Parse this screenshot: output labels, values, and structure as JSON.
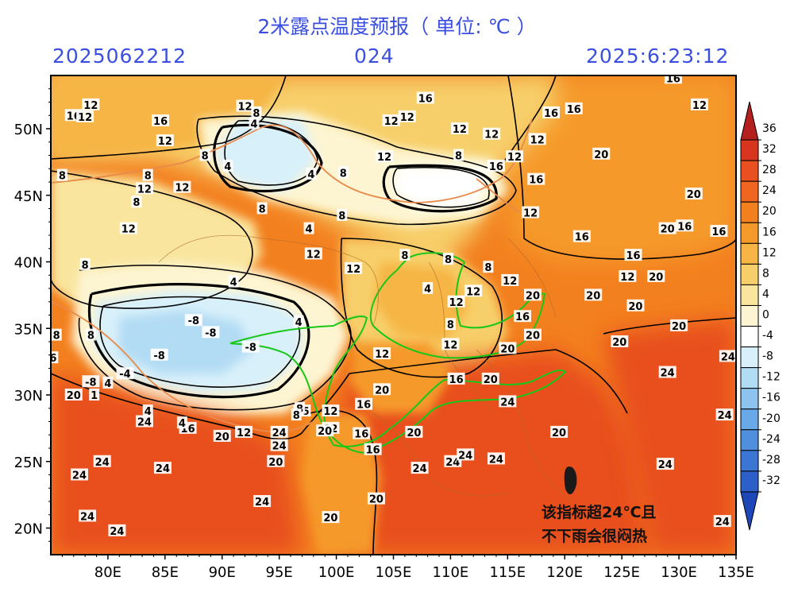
{
  "header": {
    "title": "2米露点温度预报（ 单位: ℃ ）",
    "init_time": "2025062212",
    "lead_hours": "024",
    "valid_time": "2025:6:23:12"
  },
  "axes": {
    "lat_labels": [
      "50N",
      "45N",
      "40N",
      "35N",
      "30N",
      "25N",
      "20N"
    ],
    "lon_labels": [
      "80E",
      "85E",
      "90E",
      "95E",
      "100E",
      "105E",
      "110E",
      "115E",
      "120E",
      "125E",
      "130E",
      "135E"
    ]
  },
  "colorbar": {
    "labels": [
      "36",
      "32",
      "28",
      "24",
      "20",
      "16",
      "12",
      "8",
      "4",
      "0",
      "-4",
      "-8",
      "-12",
      "-16",
      "-20",
      "-24",
      "-28",
      "-32"
    ],
    "colors": [
      "#b4201e",
      "#d8351f",
      "#e8501f",
      "#f06620",
      "#f3801f",
      "#f59a2a",
      "#f6b545",
      "#f7cf6a",
      "#f9e59e",
      "#fdf5d2",
      "#ffffff",
      "#d8f0fa",
      "#b2dcf4",
      "#8dc4ee",
      "#6aa9e8",
      "#4f8fde",
      "#3b76d4",
      "#2c5fc8",
      "#1e47b8"
    ]
  },
  "contour_labels": [
    {
      "t": "12",
      "lon": 78.5,
      "lat": 51.8
    },
    {
      "t": "16",
      "lon": 77.0,
      "lat": 51.0
    },
    {
      "t": "12",
      "lon": 78.0,
      "lat": 50.9
    },
    {
      "t": "16",
      "lon": 84.6,
      "lat": 50.6
    },
    {
      "t": "12",
      "lon": 85.0,
      "lat": 49.1
    },
    {
      "t": "12",
      "lon": 86.5,
      "lat": 45.6
    },
    {
      "t": "8",
      "lon": 83.5,
      "lat": 46.5
    },
    {
      "t": "12",
      "lon": 83.2,
      "lat": 45.5
    },
    {
      "t": "8",
      "lon": 76.0,
      "lat": 46.5
    },
    {
      "t": "8",
      "lon": 82.5,
      "lat": 44.5
    },
    {
      "t": "12",
      "lon": 81.8,
      "lat": 42.5
    },
    {
      "t": "8",
      "lon": 78.0,
      "lat": 39.8
    },
    {
      "t": "12",
      "lon": 92.0,
      "lat": 51.7
    },
    {
      "t": "8",
      "lon": 93.0,
      "lat": 51.2
    },
    {
      "t": "4",
      "lon": 92.8,
      "lat": 50.4
    },
    {
      "t": "8",
      "lon": 88.5,
      "lat": 48.0
    },
    {
      "t": "4",
      "lon": 90.5,
      "lat": 47.2
    },
    {
      "t": "8",
      "lon": 93.5,
      "lat": 44.0
    },
    {
      "t": "4",
      "lon": 97.8,
      "lat": 46.6
    },
    {
      "t": "8",
      "lon": 100.6,
      "lat": 46.7
    },
    {
      "t": "12",
      "lon": 104.2,
      "lat": 47.9
    },
    {
      "t": "12",
      "lon": 104.8,
      "lat": 50.6
    },
    {
      "t": "12",
      "lon": 106.2,
      "lat": 50.9
    },
    {
      "t": "12",
      "lon": 110.8,
      "lat": 50.0
    },
    {
      "t": "16",
      "lon": 107.8,
      "lat": 52.3
    },
    {
      "t": "8",
      "lon": 110.7,
      "lat": 48.0
    },
    {
      "t": "12",
      "lon": 113.6,
      "lat": 49.6
    },
    {
      "t": "16",
      "lon": 114.0,
      "lat": 47.2
    },
    {
      "t": "12",
      "lon": 115.6,
      "lat": 47.9
    },
    {
      "t": "16",
      "lon": 117.5,
      "lat": 46.2
    },
    {
      "t": "16",
      "lon": 118.8,
      "lat": 51.2
    },
    {
      "t": "16",
      "lon": 120.8,
      "lat": 51.5
    },
    {
      "t": "12",
      "lon": 117.6,
      "lat": 49.2
    },
    {
      "t": "16",
      "lon": 129.5,
      "lat": 53.8
    },
    {
      "t": "12",
      "lon": 131.8,
      "lat": 51.8
    },
    {
      "t": "20",
      "lon": 123.2,
      "lat": 48.1
    },
    {
      "t": "20",
      "lon": 131.3,
      "lat": 45.1
    },
    {
      "t": "16",
      "lon": 130.5,
      "lat": 42.7
    },
    {
      "t": "16",
      "lon": 133.5,
      "lat": 42.3
    },
    {
      "t": "20",
      "lon": 129.0,
      "lat": 42.5
    },
    {
      "t": "16",
      "lon": 121.5,
      "lat": 41.9
    },
    {
      "t": "12",
      "lon": 117.0,
      "lat": 43.7
    },
    {
      "t": "16",
      "lon": 126.0,
      "lat": 40.5
    },
    {
      "t": "12",
      "lon": 125.5,
      "lat": 38.9
    },
    {
      "t": "20",
      "lon": 128.0,
      "lat": 38.9
    },
    {
      "t": "20",
      "lon": 126.2,
      "lat": 36.7
    },
    {
      "t": "20",
      "lon": 122.5,
      "lat": 37.5
    },
    {
      "t": "20",
      "lon": 130.0,
      "lat": 35.2
    },
    {
      "t": "20",
      "lon": 124.8,
      "lat": 34.0
    },
    {
      "t": "24",
      "lon": 129.0,
      "lat": 31.7
    },
    {
      "t": "24",
      "lon": 134.3,
      "lat": 32.9
    },
    {
      "t": "24",
      "lon": 134.0,
      "lat": 28.5
    },
    {
      "t": "24",
      "lon": 128.8,
      "lat": 24.8
    },
    {
      "t": "24",
      "lon": 133.8,
      "lat": 20.5
    },
    {
      "t": "8",
      "lon": 100.5,
      "lat": 43.5
    },
    {
      "t": "4",
      "lon": 97.6,
      "lat": 42.5
    },
    {
      "t": "12",
      "lon": 98.0,
      "lat": 40.6
    },
    {
      "t": "12",
      "lon": 101.5,
      "lat": 39.5
    },
    {
      "t": "8",
      "lon": 106.0,
      "lat": 40.5
    },
    {
      "t": "8",
      "lon": 109.8,
      "lat": 40.2
    },
    {
      "t": "4",
      "lon": 108.0,
      "lat": 38.0
    },
    {
      "t": "8",
      "lon": 110.0,
      "lat": 35.3
    },
    {
      "t": "12",
      "lon": 110.5,
      "lat": 37.0
    },
    {
      "t": "8",
      "lon": 113.3,
      "lat": 39.6
    },
    {
      "t": "12",
      "lon": 115.2,
      "lat": 38.6
    },
    {
      "t": "12",
      "lon": 112.0,
      "lat": 37.8
    },
    {
      "t": "16",
      "lon": 116.3,
      "lat": 35.9
    },
    {
      "t": "20",
      "lon": 117.2,
      "lat": 37.5
    },
    {
      "t": "20",
      "lon": 117.2,
      "lat": 34.5
    },
    {
      "t": "20",
      "lon": 115.0,
      "lat": 33.5
    },
    {
      "t": "12",
      "lon": 110.0,
      "lat": 33.8
    },
    {
      "t": "16",
      "lon": 110.5,
      "lat": 31.2
    },
    {
      "t": "20",
      "lon": 113.5,
      "lat": 31.2
    },
    {
      "t": "12",
      "lon": 104.0,
      "lat": 33.1
    },
    {
      "t": "20",
      "lon": 104.0,
      "lat": 30.4
    },
    {
      "t": "16",
      "lon": 102.4,
      "lat": 29.3
    },
    {
      "t": "16",
      "lon": 102.2,
      "lat": 27.1
    },
    {
      "t": "16",
      "lon": 103.2,
      "lat": 25.9
    },
    {
      "t": "20",
      "lon": 103.5,
      "lat": 22.2
    },
    {
      "t": "20",
      "lon": 106.8,
      "lat": 27.2
    },
    {
      "t": "24",
      "lon": 107.3,
      "lat": 24.5
    },
    {
      "t": "24",
      "lon": 110.2,
      "lat": 25.0
    },
    {
      "t": "24",
      "lon": 111.3,
      "lat": 25.5
    },
    {
      "t": "24",
      "lon": 114.0,
      "lat": 25.2
    },
    {
      "t": "24",
      "lon": 115.0,
      "lat": 29.5
    },
    {
      "t": "20",
      "lon": 119.5,
      "lat": 27.2
    },
    {
      "t": "12",
      "lon": 99.5,
      "lat": 28.8
    },
    {
      "t": "12",
      "lon": 99.5,
      "lat": 27.5
    },
    {
      "t": "20",
      "lon": 99.0,
      "lat": 27.3
    },
    {
      "t": "20",
      "lon": 99.5,
      "lat": 20.8
    },
    {
      "t": "24",
      "lon": 95.0,
      "lat": 27.2
    },
    {
      "t": "24",
      "lon": 95.0,
      "lat": 26.2
    },
    {
      "t": "20",
      "lon": 94.7,
      "lat": 25.0
    },
    {
      "t": "16",
      "lon": 97.0,
      "lat": 28.8
    },
    {
      "t": "8",
      "lon": 96.8,
      "lat": 29.0
    },
    {
      "t": "12",
      "lon": 91.9,
      "lat": 27.2
    },
    {
      "t": "20",
      "lon": 90.0,
      "lat": 26.9
    },
    {
      "t": "16",
      "lon": 87.0,
      "lat": 27.5
    },
    {
      "t": "24",
      "lon": 83.2,
      "lat": 28.0
    },
    {
      "t": "24",
      "lon": 79.5,
      "lat": 25.0
    },
    {
      "t": "24",
      "lon": 77.5,
      "lat": 24.0
    },
    {
      "t": "24",
      "lon": 84.8,
      "lat": 24.5
    },
    {
      "t": "24",
      "lon": 93.5,
      "lat": 22.0
    },
    {
      "t": "24",
      "lon": 78.2,
      "lat": 20.9
    },
    {
      "t": "24",
      "lon": 80.8,
      "lat": 19.8
    },
    {
      "t": "20",
      "lon": 77.0,
      "lat": 30.0
    },
    {
      "t": "1",
      "lon": 78.8,
      "lat": 30.0
    },
    {
      "t": "4",
      "lon": 80.0,
      "lat": 30.9
    },
    {
      "t": "4",
      "lon": 83.5,
      "lat": 28.8
    },
    {
      "t": "4",
      "lon": 86.5,
      "lat": 27.9
    },
    {
      "t": "8",
      "lon": 96.5,
      "lat": 28.5
    },
    {
      "t": "6",
      "lon": 75.2,
      "lat": 32.8
    },
    {
      "t": "8",
      "lon": 75.5,
      "lat": 34.5
    },
    {
      "t": "8",
      "lon": 78.5,
      "lat": 34.5
    },
    {
      "t": "-8",
      "lon": 84.5,
      "lat": 33.0
    },
    {
      "t": "-8",
      "lon": 89.0,
      "lat": 34.7
    },
    {
      "t": "-8",
      "lon": 87.5,
      "lat": 35.6
    },
    {
      "t": "-4",
      "lon": 81.5,
      "lat": 31.6
    },
    {
      "t": "-8",
      "lon": 78.5,
      "lat": 31.0
    },
    {
      "t": "-8",
      "lon": 92.5,
      "lat": 33.6
    },
    {
      "t": "4",
      "lon": 96.7,
      "lat": 35.5
    },
    {
      "t": "4",
      "lon": 91.0,
      "lat": 38.5
    }
  ],
  "annotation": {
    "line1": "该指标超24℃且",
    "line2": "不下雨会很闷热"
  }
}
